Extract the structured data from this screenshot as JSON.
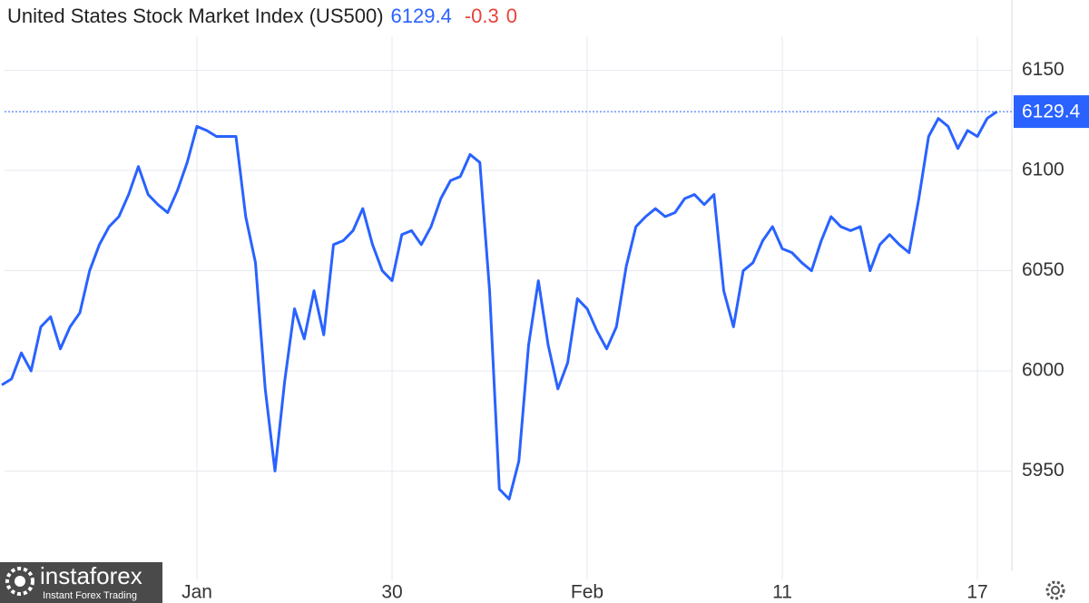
{
  "chart_data": {
    "type": "line",
    "title": "United States Stock Market Index (US500)",
    "change": -0.3,
    "change_pct": 0,
    "categories": [
      null,
      null,
      null,
      null,
      null,
      null,
      null,
      null,
      null,
      null,
      null,
      null,
      null,
      null,
      null,
      null,
      null,
      null,
      null,
      null,
      "Jan",
      null,
      null,
      null,
      null,
      null,
      null,
      null,
      null,
      null,
      null,
      null,
      null,
      null,
      null,
      null,
      null,
      null,
      null,
      null,
      "30",
      null,
      null,
      null,
      null,
      null,
      null,
      null,
      null,
      null,
      null,
      null,
      null,
      null,
      null,
      null,
      null,
      null,
      null,
      null,
      "Feb",
      null,
      null,
      null,
      null,
      null,
      null,
      null,
      null,
      null,
      null,
      null,
      null,
      null,
      null,
      null,
      null,
      null,
      null,
      null,
      "11",
      null,
      null,
      null,
      null,
      null,
      null,
      null,
      null,
      null,
      null,
      null,
      null,
      null,
      null,
      null,
      null,
      null,
      null,
      null,
      "17",
      null,
      null
    ],
    "series": [
      {
        "color": "#2962ff",
        "values": [
          5993,
          5996,
          6009,
          6000,
          6022,
          6027,
          6011,
          6022,
          6029,
          6050,
          6063,
          6072,
          6077,
          6088,
          6102,
          6088,
          6083,
          6079,
          6090,
          6104,
          6122,
          6120,
          6117,
          6117,
          6117,
          6077,
          6054,
          5991,
          5950,
          5995,
          6031,
          6016,
          6040,
          6018,
          6063,
          6065,
          6070,
          6081,
          6063,
          6050,
          6045,
          6068,
          6070,
          6063,
          6072,
          6086,
          6095,
          6097,
          6108,
          6104,
          6040,
          5941,
          5936,
          5955,
          6013,
          6045,
          6013,
          5991,
          6004,
          6036,
          6031,
          6020,
          6011,
          6022,
          6052,
          6072,
          6077,
          6081,
          6077,
          6079,
          6086,
          6088,
          6083,
          6088,
          6040,
          6022,
          6050,
          6054,
          6065,
          6072,
          6061,
          6059,
          6054,
          6050,
          6065,
          6077,
          6072,
          6070,
          6072,
          6050,
          6063,
          6068,
          6063,
          6059,
          6086,
          6117,
          6126,
          6122,
          6111,
          6120,
          6117,
          6126,
          6129.4
        ]
      }
    ],
    "ylim": [
      5900,
      6167
    ],
    "yticks": [
      5950,
      6000,
      6050,
      6100,
      6150
    ],
    "grid": true,
    "change_color": "#e8423a"
  },
  "watermark": {
    "brand": "instaforex",
    "tagline": "Instant Forex Trading"
  }
}
